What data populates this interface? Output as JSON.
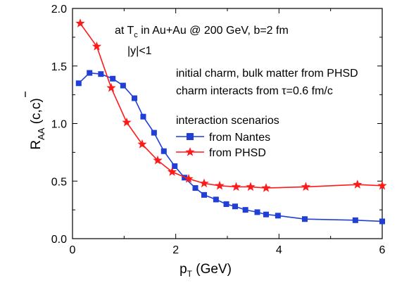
{
  "chart_data": {
    "type": "line",
    "x_label": {
      "main": "p",
      "sub": "T",
      "tail": " (GeV)"
    },
    "y_label": {
      "main": "R",
      "sub": "AA",
      "tail": " (c,c)"
    },
    "xlim": [
      0,
      6
    ],
    "ylim": [
      0.0,
      2.0
    ],
    "x_ticks": [
      0,
      2,
      4,
      6
    ],
    "x_tick_labels": [
      "0",
      "2",
      "4",
      "6"
    ],
    "y_ticks": [
      0.0,
      0.5,
      1.0,
      1.5,
      2.0
    ],
    "y_tick_labels": [
      "0.0",
      "0.5",
      "1.0",
      "1.5",
      "2.0"
    ],
    "grid": false,
    "annotations": {
      "line1_pre": "at T",
      "line1_sub": "c",
      "line1_post": " in Au+Au @ 200 GeV, b=2 fm",
      "line2": "|y|<1",
      "line3": "initial charm, bulk matter from PHSD",
      "line4_pre": "charm interacts from ",
      "line4_tau": "τ",
      "line4_post": "=0.6 fm/c"
    },
    "legend": {
      "title": "interaction scenarios",
      "placement": "right-middle"
    },
    "series": [
      {
        "name": "from Nantes",
        "color": "#1f3fd6",
        "marker": "square",
        "x": [
          0.12,
          0.33,
          0.55,
          0.78,
          0.98,
          1.2,
          1.37,
          1.58,
          1.77,
          1.98,
          2.17,
          2.38,
          2.55,
          2.78,
          2.98,
          3.15,
          3.35,
          3.58,
          3.75,
          3.98,
          4.5,
          5.48,
          6.0
        ],
        "y": [
          1.35,
          1.44,
          1.43,
          1.39,
          1.33,
          1.22,
          1.06,
          0.92,
          0.76,
          0.63,
          0.53,
          0.44,
          0.38,
          0.34,
          0.3,
          0.28,
          0.25,
          0.23,
          0.21,
          0.2,
          0.17,
          0.16,
          0.15
        ]
      },
      {
        "name": "from PHSD",
        "color": "#ff1a1a",
        "marker": "star",
        "x": [
          0.15,
          0.47,
          0.75,
          1.05,
          1.35,
          1.65,
          1.93,
          2.25,
          2.55,
          2.85,
          3.17,
          3.45,
          3.75,
          4.52,
          5.52,
          6.0
        ],
        "y": [
          1.87,
          1.67,
          1.31,
          1.01,
          0.82,
          0.68,
          0.58,
          0.52,
          0.48,
          0.46,
          0.45,
          0.45,
          0.44,
          0.45,
          0.47,
          0.46
        ]
      }
    ]
  }
}
